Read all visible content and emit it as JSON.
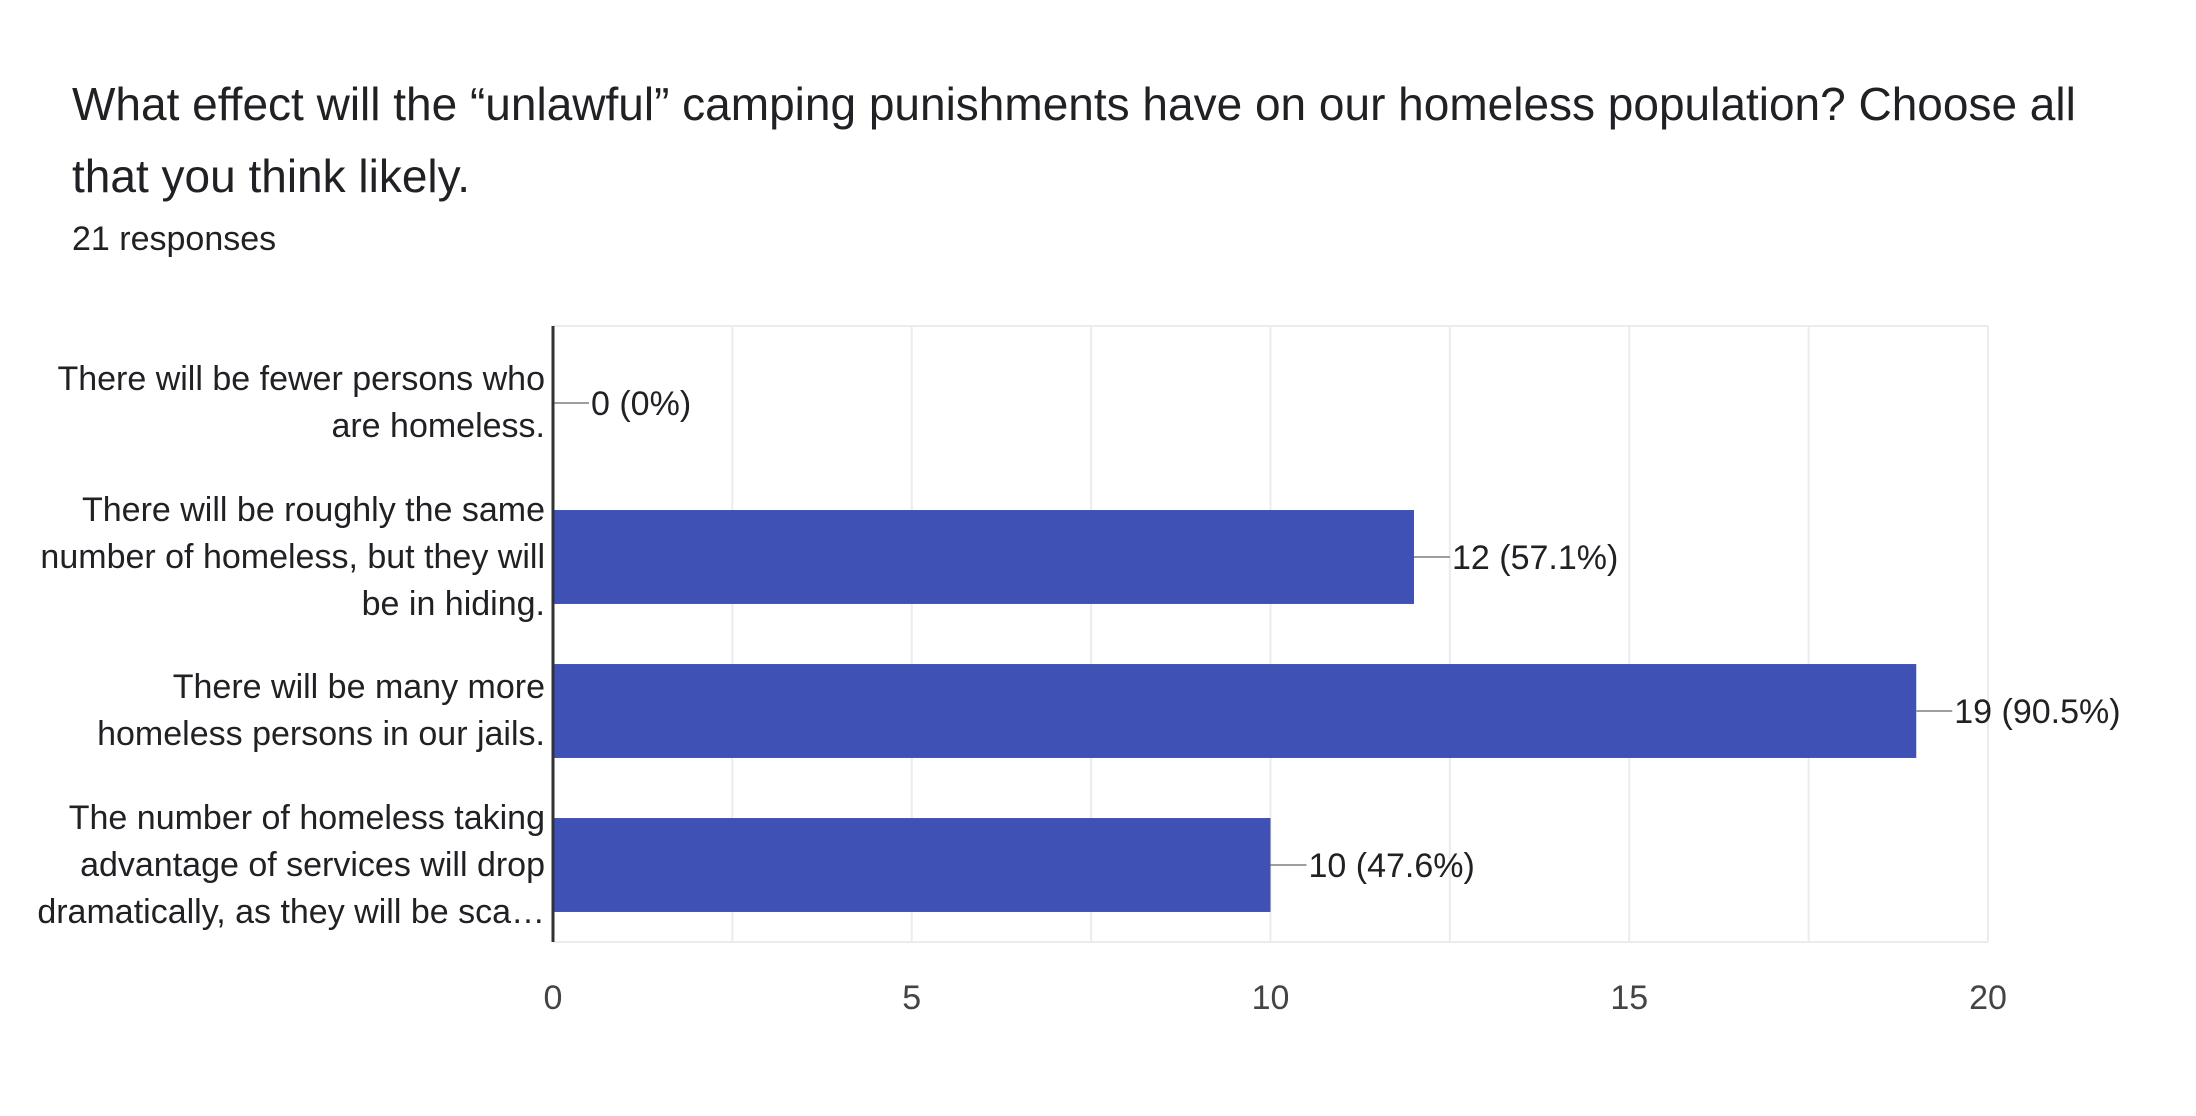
{
  "question": {
    "title": "What effect will the “unlawful” camping punishments have on our homeless population? Choose all that you think likely.",
    "response_count": "21 responses"
  },
  "colors": {
    "bar": "#3f51b5",
    "grid": "#ececec",
    "axis": "#333333",
    "leader": "#9e9e9e"
  },
  "chart_data": {
    "type": "bar",
    "orientation": "horizontal",
    "categories": [
      "There will be fewer persons who\nare homeless.",
      "There will be roughly the same\nnumber of homeless, but they will\nbe in hiding.",
      "There will be many more\nhomeless persons in our jails.",
      "The number of homeless taking\nadvantage of services will drop\ndramatically, as they will be sca…"
    ],
    "values": [
      0,
      12,
      19,
      10
    ],
    "data_labels": [
      "0 (0%)",
      "12 (57.1%)",
      "19 (90.5%)",
      "10 (47.6%)"
    ],
    "xlim": [
      0,
      20
    ],
    "xticks": [
      0,
      5,
      10,
      15,
      20
    ],
    "xlabel": "",
    "ylabel": "",
    "grid": true,
    "legend": "none"
  }
}
